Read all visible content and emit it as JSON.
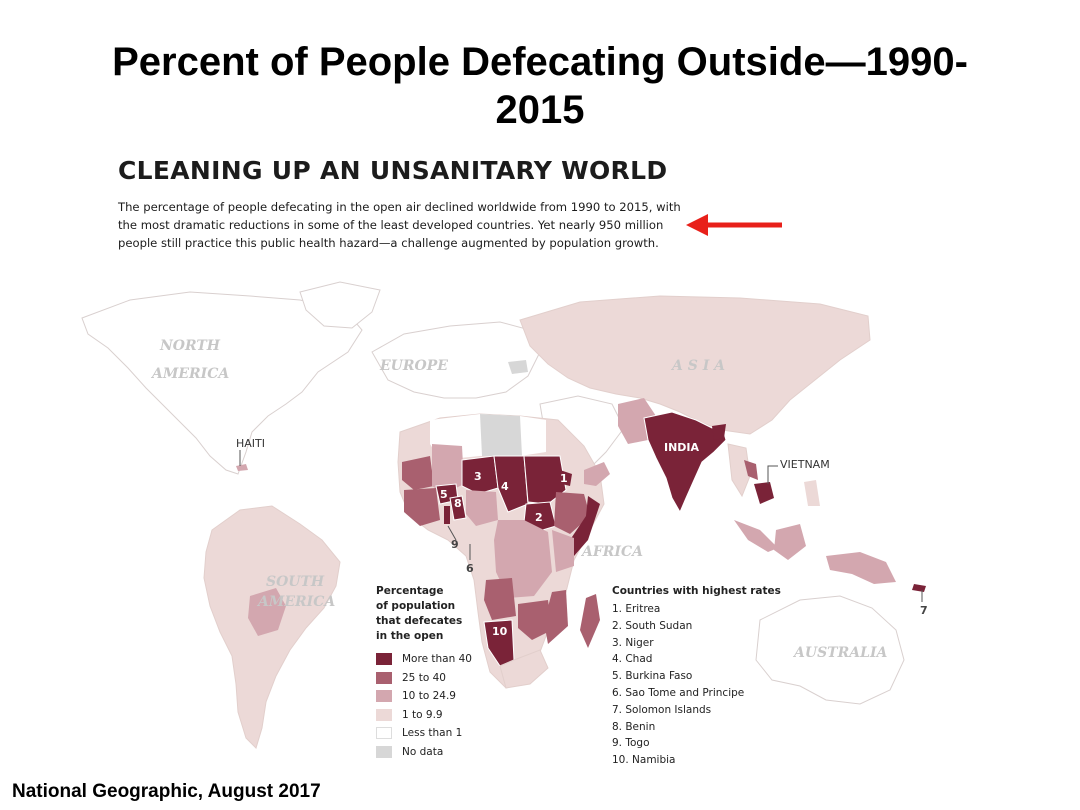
{
  "slide": {
    "title_line1": "Percent of People Defecating Outside—1990-",
    "title_line2": "2015",
    "credit": "National Geographic, August 2017"
  },
  "map": {
    "heading": "CLEANING UP AN UNSANITARY WORLD",
    "intro_lines": [
      "The percentage of people defecating in the open air declined worldwide from 1990 to 2015, with",
      "the most dramatic reductions in some of the least developed countries. Yet nearly 950 million",
      "people still practice this public health hazard—a challenge augmented by population growth."
    ],
    "arrow_color": "#e8201a",
    "continents": {
      "north_america_1": "NORTH",
      "north_america_2": "AMERICA",
      "south_america_1": "SOUTH",
      "south_america_2": "AMERICA",
      "europe": "EUROPE",
      "asia": "A S I A",
      "africa": "AFRICA",
      "australia": "AUSTRALIA"
    },
    "callouts": {
      "haiti": "HAITI",
      "vietnam": "VIETNAM",
      "india": "INDIA"
    },
    "number_labels": [
      "1",
      "2",
      "3",
      "4",
      "5",
      "6",
      "7",
      "8",
      "9",
      "10"
    ]
  },
  "legend": {
    "title_lines": [
      "Percentage",
      "of population",
      "that defecates",
      "in the open"
    ],
    "items": [
      {
        "label": "More than 40",
        "color": "#7a2338"
      },
      {
        "label": "25 to 40",
        "color": "#a9606f"
      },
      {
        "label": "10 to 24.9",
        "color": "#d3a7af"
      },
      {
        "label": "1 to 9.9",
        "color": "#ecd9d7"
      },
      {
        "label": "Less than 1",
        "color": "#ffffff"
      },
      {
        "label": "No data",
        "color": "#d7d7d7"
      }
    ]
  },
  "countries": {
    "title": "Countries with highest rates",
    "items": [
      "1. Eritrea",
      "2. South Sudan",
      "3. Niger",
      "4. Chad",
      "5. Burkina Faso",
      "6. Sao Tome and Principe",
      "7. Solomon Islands",
      "8. Benin",
      "9. Togo",
      "10. Namibia"
    ]
  }
}
